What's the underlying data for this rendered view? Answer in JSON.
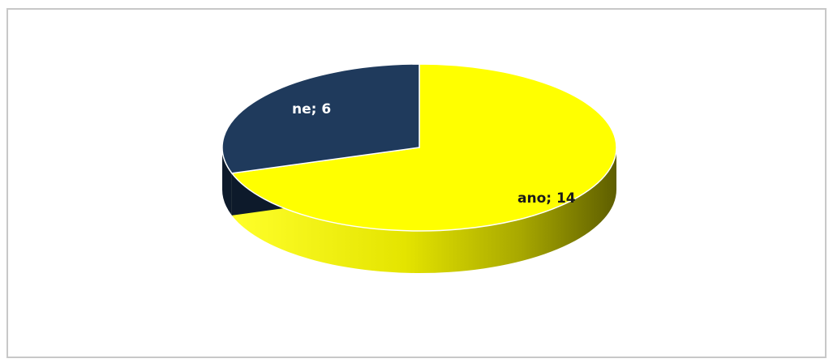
{
  "chart_data": {
    "type": "pie",
    "title": "",
    "slices": [
      {
        "label": "ano",
        "value": 14,
        "label_text": "ano; 14",
        "color": "#ffff00",
        "side_color_dark": "#6e6e00"
      },
      {
        "label": "ne",
        "value": 6,
        "label_text": "ne; 6",
        "color": "#1f3a5c",
        "side_color_dark": "#0d1a2b"
      }
    ],
    "legend": "none",
    "three_d": true
  }
}
